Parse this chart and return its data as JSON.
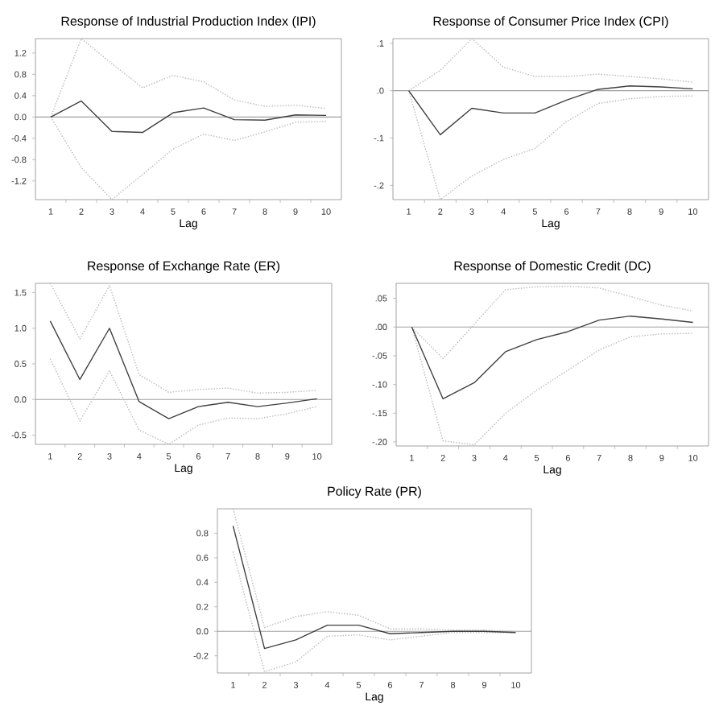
{
  "chart_data": [
    {
      "type": "line",
      "title": "Response of Industrial Production Index (IPI)",
      "xlabel": "Lag",
      "categories": [
        "1",
        "2",
        "3",
        "4",
        "5",
        "6",
        "7",
        "8",
        "9",
        "10"
      ],
      "ylim": [
        -1.55,
        1.47
      ],
      "yticks": [
        {
          "value": -1.2,
          "label": "-1.2"
        },
        {
          "value": -0.8,
          "label": "-0.8"
        },
        {
          "value": -0.4,
          "label": "-0.4"
        },
        {
          "value": 0,
          "label": "0.0"
        },
        {
          "value": 0.4,
          "label": "0.4"
        },
        {
          "value": 0.8,
          "label": "0.8"
        },
        {
          "value": 1.2,
          "label": "1.2"
        }
      ],
      "ref_lines": [
        {
          "axis": "y",
          "value": 0,
          "color": "#a0a0a0"
        }
      ],
      "series": [
        {
          "color": "#b8b8b8",
          "line_style": "dotted",
          "values": [
            0,
            1.47,
            1.0,
            0.55,
            0.78,
            0.66,
            0.32,
            0.2,
            0.22,
            0.16
          ]
        },
        {
          "color": "#b8b8b8",
          "line_style": "dotted",
          "values": [
            0,
            -0.95,
            -1.55,
            -1.08,
            -0.6,
            -0.32,
            -0.44,
            -0.28,
            -0.1,
            -0.08
          ]
        },
        {
          "color": "#404040",
          "line_style": "solid",
          "values": [
            0,
            0.3,
            -0.27,
            -0.29,
            0.08,
            0.17,
            -0.05,
            -0.06,
            0.04,
            0.03
          ]
        }
      ]
    },
    {
      "type": "line",
      "title": "Response of Consumer Price Index (CPI)",
      "xlabel": "Lag",
      "categories": [
        "1",
        "2",
        "3",
        "4",
        "5",
        "6",
        "7",
        "8",
        "9",
        "10"
      ],
      "ylim": [
        -0.23,
        0.11
      ],
      "yticks": [
        {
          "value": -0.2,
          "label": "-.2"
        },
        {
          "value": -0.1,
          "label": "-.1"
        },
        {
          "value": 0,
          "label": ".0"
        },
        {
          "value": 0.1,
          "label": ".1"
        }
      ],
      "ref_lines": [
        {
          "axis": "y",
          "value": 0,
          "color": "#a0a0a0"
        }
      ],
      "series": [
        {
          "color": "#b8b8b8",
          "line_style": "dotted",
          "values": [
            0,
            0.043,
            0.11,
            0.05,
            0.03,
            0.03,
            0.035,
            0.03,
            0.025,
            0.018
          ]
        },
        {
          "color": "#b8b8b8",
          "line_style": "dotted",
          "values": [
            0,
            -0.23,
            -0.18,
            -0.145,
            -0.122,
            -0.065,
            -0.027,
            -0.017,
            -0.012,
            -0.011
          ]
        },
        {
          "color": "#404040",
          "line_style": "solid",
          "values": [
            0,
            -0.093,
            -0.037,
            -0.047,
            -0.047,
            -0.02,
            0.003,
            0.01,
            0.008,
            0.004
          ]
        }
      ]
    },
    {
      "type": "line",
      "title": "Response of Exchange Rate (ER)",
      "xlabel": "Lag",
      "categories": [
        "1",
        "2",
        "3",
        "4",
        "5",
        "6",
        "7",
        "8",
        "9",
        "10"
      ],
      "ylim": [
        -0.63,
        1.63
      ],
      "yticks": [
        {
          "value": -0.5,
          "label": "-0.5"
        },
        {
          "value": 0,
          "label": "0.0"
        },
        {
          "value": 0.5,
          "label": "0.5"
        },
        {
          "value": 1,
          "label": "1.0"
        },
        {
          "value": 1.5,
          "label": "1.5"
        }
      ],
      "ref_lines": [
        {
          "axis": "y",
          "value": 0,
          "color": "#a0a0a0"
        }
      ],
      "series": [
        {
          "color": "#b8b8b8",
          "line_style": "dotted",
          "values": [
            1.63,
            0.85,
            1.6,
            0.35,
            0.1,
            0.14,
            0.16,
            0.09,
            0.1,
            0.13
          ]
        },
        {
          "color": "#b8b8b8",
          "line_style": "dotted",
          "values": [
            0.57,
            -0.3,
            0.4,
            -0.43,
            -0.63,
            -0.36,
            -0.26,
            -0.27,
            -0.2,
            -0.1
          ]
        },
        {
          "color": "#404040",
          "line_style": "solid",
          "values": [
            1.1,
            0.28,
            1.0,
            -0.03,
            -0.27,
            -0.1,
            -0.04,
            -0.1,
            -0.05,
            0.01
          ]
        }
      ]
    },
    {
      "type": "line",
      "title": "Response of Domestic Credit (DC)",
      "xlabel": "Lag",
      "categories": [
        "1",
        "2",
        "3",
        "4",
        "5",
        "6",
        "7",
        "8",
        "9",
        "10"
      ],
      "ylim": [
        -0.207,
        0.076
      ],
      "yticks": [
        {
          "value": -0.2,
          "label": "-.20"
        },
        {
          "value": -0.15,
          "label": "-.15"
        },
        {
          "value": -0.1,
          "label": "-.10"
        },
        {
          "value": -0.05,
          "label": "-.05"
        },
        {
          "value": 0,
          "label": ".00"
        },
        {
          "value": 0.05,
          "label": ".05"
        }
      ],
      "ref_lines": [
        {
          "axis": "y",
          "value": 0,
          "color": "#a0a0a0"
        }
      ],
      "series": [
        {
          "color": "#b8b8b8",
          "line_style": "dotted",
          "values": [
            0,
            -0.055,
            0.005,
            0.065,
            0.07,
            0.071,
            0.068,
            0.053,
            0.038,
            0.028
          ]
        },
        {
          "color": "#b8b8b8",
          "line_style": "dotted",
          "values": [
            0,
            -0.198,
            -0.205,
            -0.15,
            -0.11,
            -0.075,
            -0.04,
            -0.017,
            -0.012,
            -0.011
          ]
        },
        {
          "color": "#404040",
          "line_style": "solid",
          "values": [
            0,
            -0.125,
            -0.097,
            -0.043,
            -0.022,
            -0.008,
            0.012,
            0.019,
            0.014,
            0.008
          ]
        }
      ]
    },
    {
      "type": "line",
      "title": "Policy Rate (PR)",
      "xlabel": "Lag",
      "categories": [
        "1",
        "2",
        "3",
        "4",
        "5",
        "6",
        "7",
        "8",
        "9",
        "10"
      ],
      "ylim": [
        -0.34,
        1.0
      ],
      "yticks": [
        {
          "value": -0.2,
          "label": "-0.2"
        },
        {
          "value": 0,
          "label": "0.0"
        },
        {
          "value": 0.2,
          "label": "0.2"
        },
        {
          "value": 0.4,
          "label": "0.4"
        },
        {
          "value": 0.6,
          "label": "0.6"
        },
        {
          "value": 0.8,
          "label": "0.8"
        }
      ],
      "ref_lines": [
        {
          "axis": "y",
          "value": 0,
          "color": "#a0a0a0"
        }
      ],
      "series": [
        {
          "color": "#b8b8b8",
          "line_style": "dotted",
          "values": [
            1.0,
            0.03,
            0.12,
            0.16,
            0.13,
            0.02,
            0.02,
            0.01,
            0.01,
            0.0
          ]
        },
        {
          "color": "#b8b8b8",
          "line_style": "dotted",
          "values": [
            0.65,
            -0.33,
            -0.25,
            -0.04,
            -0.03,
            -0.07,
            -0.04,
            -0.01,
            -0.01,
            -0.01
          ]
        },
        {
          "color": "#404040",
          "line_style": "solid",
          "values": [
            0.86,
            -0.14,
            -0.07,
            0.05,
            0.05,
            -0.02,
            -0.01,
            0,
            0,
            -0.01
          ]
        }
      ]
    }
  ]
}
